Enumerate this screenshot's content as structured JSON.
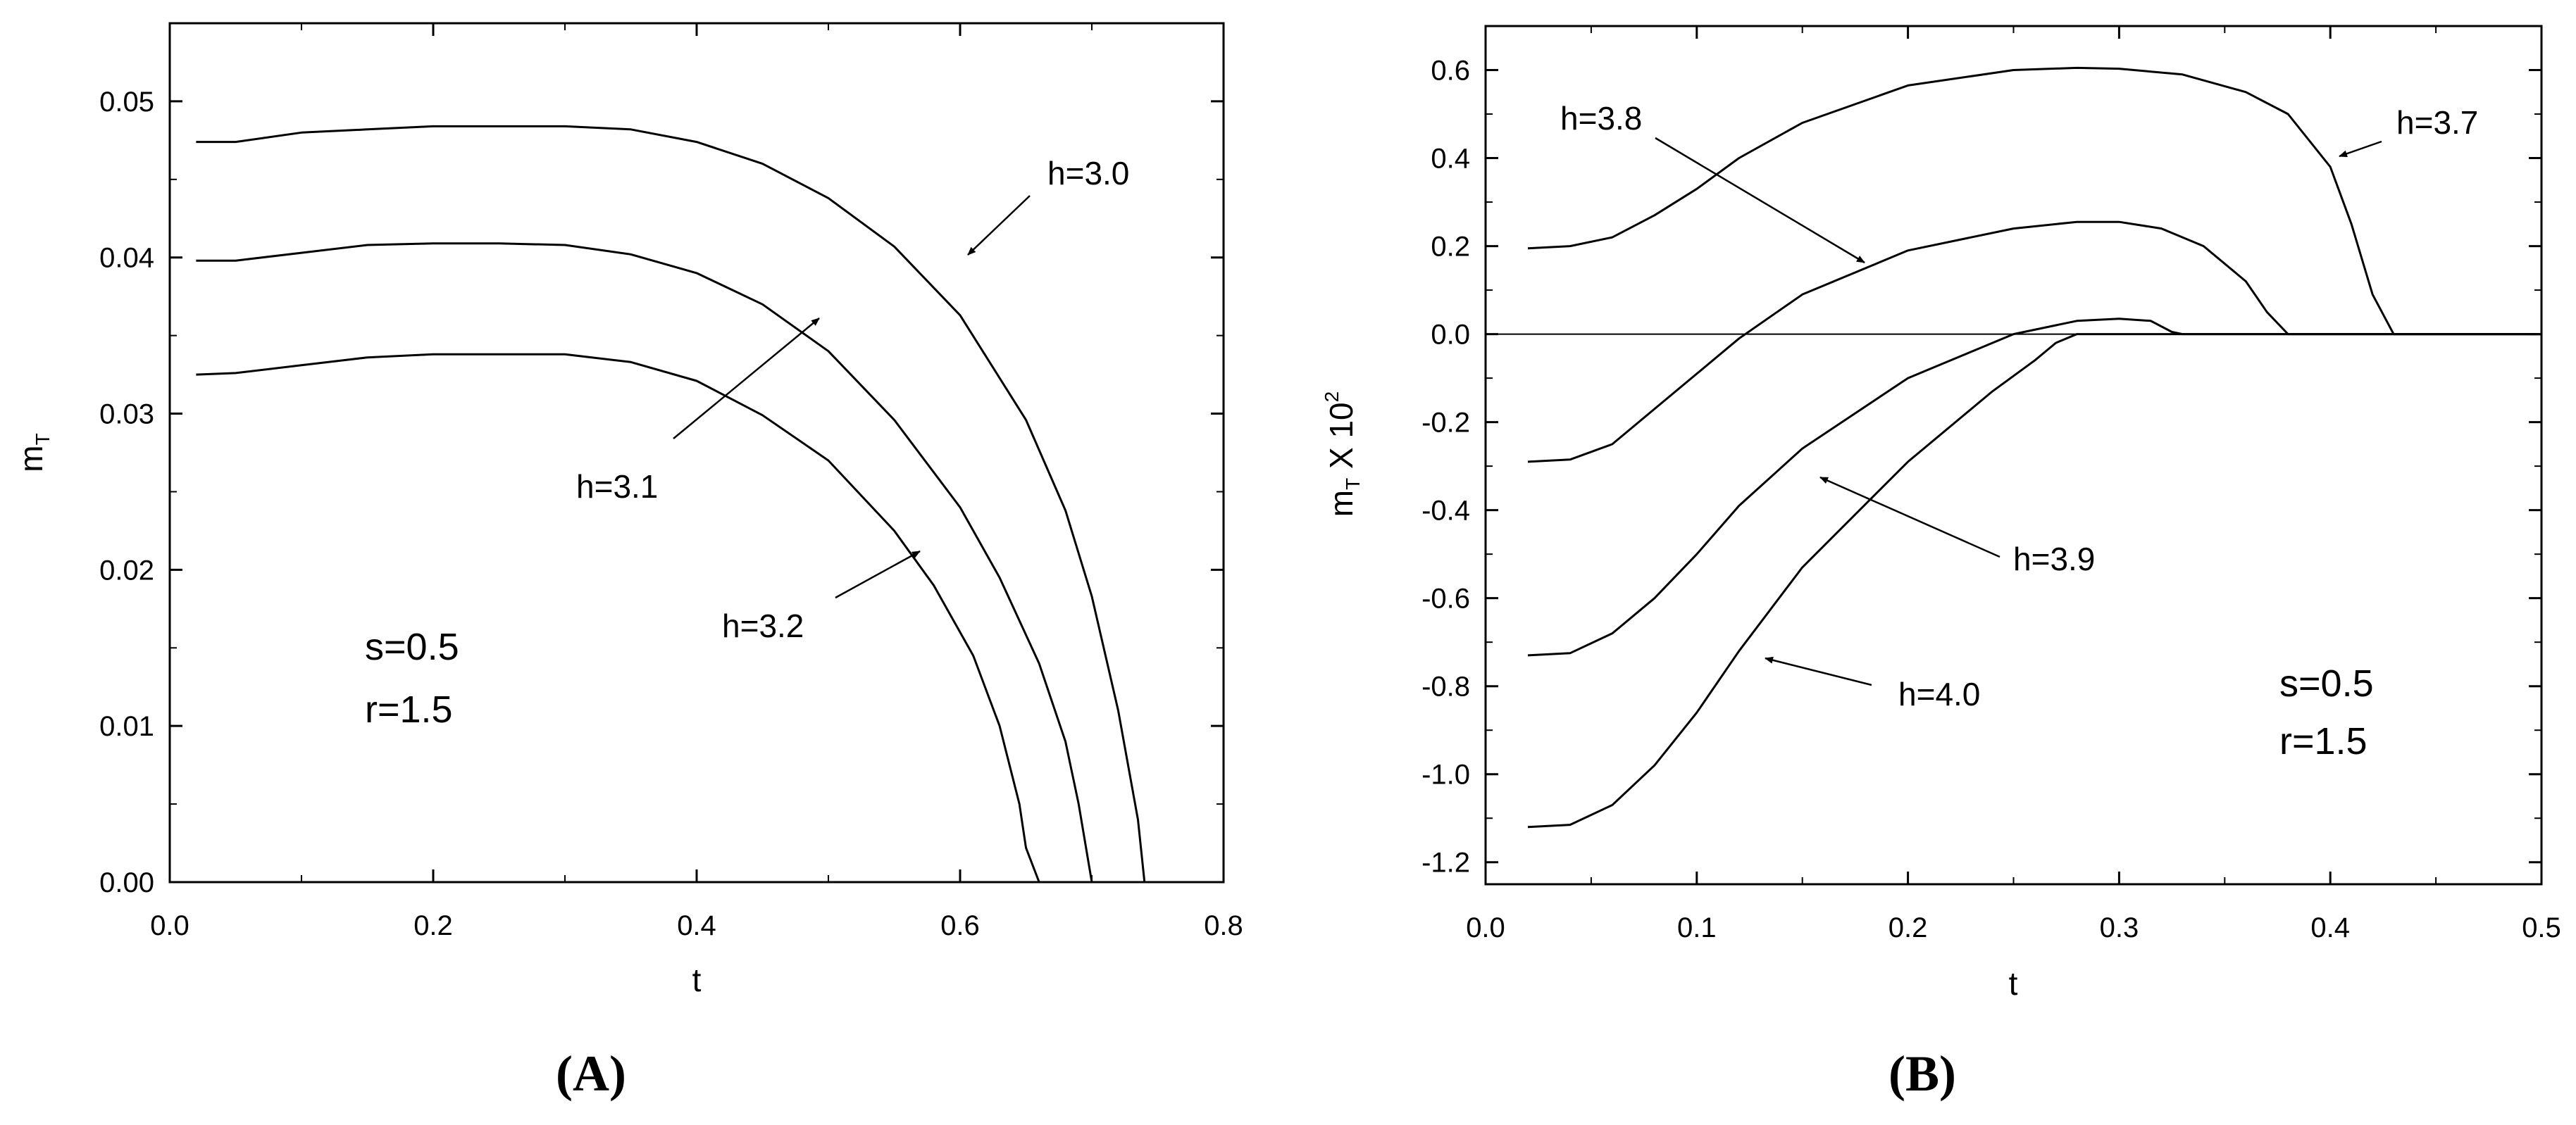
{
  "figure": {
    "panels": [
      "(A)",
      "(B)"
    ]
  },
  "chart_data": [
    {
      "type": "line",
      "panel": "(A)",
      "xlabel": "t",
      "ylabel": "m",
      "ylabel_sub": "T",
      "xlim": [
        0.0,
        0.8
      ],
      "ylim": [
        0.0,
        0.055
      ],
      "xticks": [
        "0.0",
        "0.2",
        "0.4",
        "0.6",
        "0.8"
      ],
      "yticks": [
        "0.00",
        "0.01",
        "0.02",
        "0.03",
        "0.04",
        "0.05"
      ],
      "grid": false,
      "params": [
        "s=0.5",
        "r=1.5"
      ],
      "series": [
        {
          "name": "h=3.0",
          "x": [
            0.02,
            0.05,
            0.1,
            0.15,
            0.2,
            0.25,
            0.3,
            0.35,
            0.4,
            0.45,
            0.5,
            0.55,
            0.6,
            0.65,
            0.68,
            0.7,
            0.72,
            0.735,
            0.74
          ],
          "y": [
            0.0474,
            0.0474,
            0.048,
            0.0482,
            0.0484,
            0.0484,
            0.0484,
            0.0482,
            0.0474,
            0.046,
            0.0438,
            0.0407,
            0.0363,
            0.0296,
            0.0238,
            0.0183,
            0.011,
            0.004,
            0.0
          ]
        },
        {
          "name": "h=3.1",
          "x": [
            0.02,
            0.05,
            0.1,
            0.15,
            0.2,
            0.25,
            0.3,
            0.35,
            0.4,
            0.45,
            0.5,
            0.55,
            0.6,
            0.63,
            0.66,
            0.68,
            0.69,
            0.7
          ],
          "y": [
            0.0398,
            0.0398,
            0.0403,
            0.0408,
            0.0409,
            0.0409,
            0.0408,
            0.0402,
            0.039,
            0.037,
            0.034,
            0.0296,
            0.024,
            0.0195,
            0.014,
            0.009,
            0.005,
            0.0
          ]
        },
        {
          "name": "h=3.2",
          "x": [
            0.02,
            0.05,
            0.1,
            0.15,
            0.2,
            0.25,
            0.3,
            0.35,
            0.4,
            0.45,
            0.5,
            0.55,
            0.58,
            0.61,
            0.63,
            0.645,
            0.65,
            0.66
          ],
          "y": [
            0.0325,
            0.0326,
            0.0331,
            0.0336,
            0.0338,
            0.0338,
            0.0338,
            0.0333,
            0.0321,
            0.0299,
            0.027,
            0.0225,
            0.019,
            0.0145,
            0.01,
            0.005,
            0.0022,
            0.0
          ]
        }
      ],
      "annotations": [
        {
          "text": "h=3.0",
          "series": "h=3.0"
        },
        {
          "text": "h=3.1",
          "series": "h=3.1"
        },
        {
          "text": "h=3.2",
          "series": "h=3.2"
        }
      ]
    },
    {
      "type": "line",
      "panel": "(B)",
      "xlabel": "t",
      "ylabel": "m",
      "ylabel_sub": "T",
      "ylabel_rest": " X 10",
      "ylabel_sup": "2",
      "xlim": [
        0.0,
        0.5
      ],
      "ylim": [
        -1.25,
        0.7
      ],
      "xticks": [
        "0.0",
        "0.1",
        "0.2",
        "0.3",
        "0.4",
        "0.5"
      ],
      "yticks": [
        "-1.2",
        "-1.0",
        "-0.8",
        "-0.6",
        "-0.4",
        "-0.2",
        "0.0",
        "0.2",
        "0.4",
        "0.6"
      ],
      "grid": false,
      "reference_line_y": 0.0,
      "params": [
        "s=0.5",
        "r=1.5"
      ],
      "series": [
        {
          "name": "h=3.7",
          "x": [
            0.02,
            0.04,
            0.06,
            0.08,
            0.1,
            0.12,
            0.15,
            0.2,
            0.25,
            0.28,
            0.3,
            0.33,
            0.36,
            0.38,
            0.4,
            0.41,
            0.42,
            0.43,
            0.5
          ],
          "y": [
            0.195,
            0.2,
            0.22,
            0.27,
            0.33,
            0.4,
            0.48,
            0.565,
            0.6,
            0.605,
            0.603,
            0.59,
            0.55,
            0.5,
            0.38,
            0.25,
            0.09,
            0.0,
            0.0
          ]
        },
        {
          "name": "h=3.8",
          "x": [
            0.02,
            0.04,
            0.06,
            0.08,
            0.1,
            0.12,
            0.15,
            0.2,
            0.25,
            0.28,
            0.3,
            0.32,
            0.34,
            0.36,
            0.37,
            0.38,
            0.5
          ],
          "y": [
            -0.29,
            -0.285,
            -0.25,
            -0.17,
            -0.09,
            -0.01,
            0.09,
            0.19,
            0.24,
            0.255,
            0.255,
            0.24,
            0.2,
            0.12,
            0.05,
            0.0,
            0.0
          ]
        },
        {
          "name": "h=3.9",
          "x": [
            0.02,
            0.04,
            0.06,
            0.08,
            0.1,
            0.12,
            0.15,
            0.2,
            0.25,
            0.28,
            0.3,
            0.315,
            0.325,
            0.33,
            0.5
          ],
          "y": [
            -0.73,
            -0.725,
            -0.68,
            -0.6,
            -0.5,
            -0.39,
            -0.26,
            -0.1,
            0.0,
            0.03,
            0.035,
            0.03,
            0.005,
            0.0,
            0.0
          ]
        },
        {
          "name": "h=4.0",
          "x": [
            0.02,
            0.04,
            0.06,
            0.08,
            0.1,
            0.12,
            0.15,
            0.2,
            0.24,
            0.26,
            0.27,
            0.28,
            0.5
          ],
          "y": [
            -1.12,
            -1.115,
            -1.07,
            -0.98,
            -0.86,
            -0.72,
            -0.53,
            -0.29,
            -0.13,
            -0.06,
            -0.02,
            0.0,
            0.0
          ]
        }
      ],
      "annotations": [
        {
          "text": "h=3.7",
          "series": "h=3.7"
        },
        {
          "text": "h=3.8",
          "series": "h=3.8"
        },
        {
          "text": "h=3.9",
          "series": "h=3.9"
        },
        {
          "text": "h=4.0",
          "series": "h=4.0"
        }
      ]
    }
  ]
}
